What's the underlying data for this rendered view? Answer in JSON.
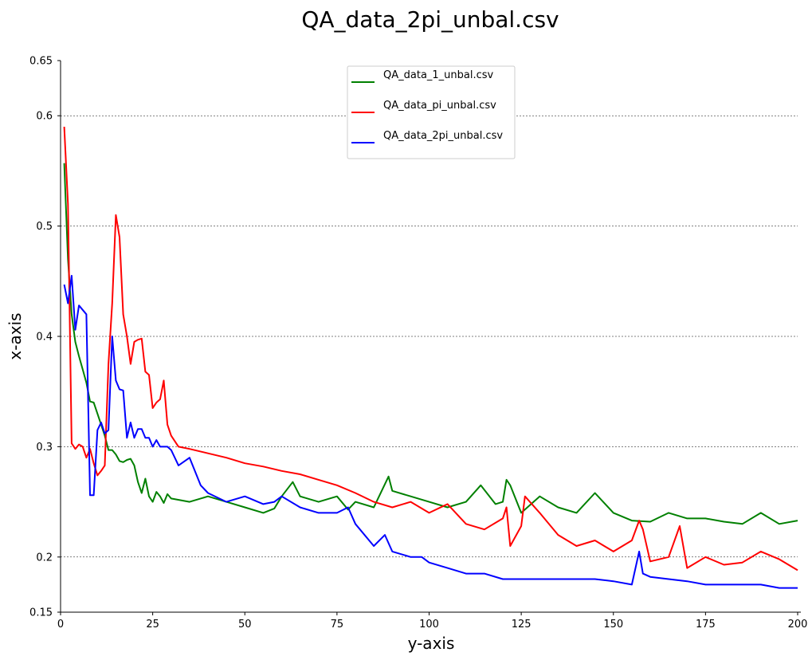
{
  "chart_data": {
    "type": "line",
    "title": "QA_data_2pi_unbal.csv",
    "xlabel": "y-axis",
    "ylabel": "x-axis",
    "xlim": [
      0,
      200
    ],
    "ylim": [
      0.15,
      0.65
    ],
    "xticks": [
      0,
      25,
      50,
      75,
      100,
      125,
      150,
      175,
      200
    ],
    "yticks": [
      0.15,
      0.2,
      0.3,
      0.4,
      0.5,
      0.6,
      0.65
    ],
    "ytick_labels": [
      "0.15",
      "0.2",
      "0.3",
      "0.4",
      "0.5",
      "0.6",
      "0.65"
    ],
    "grid": {
      "y_lines": [
        0.2,
        0.3,
        0.4,
        0.5,
        0.6
      ],
      "style": "dashed"
    },
    "legend": {
      "placement": "top-center"
    },
    "series": [
      {
        "name": "QA_data_1_unbal.csv",
        "color": "#008000",
        "x": [
          1,
          2,
          3,
          4,
          5,
          6,
          7,
          8,
          9,
          10,
          11,
          12,
          13,
          14,
          15,
          16,
          17,
          18,
          19,
          20,
          21,
          22,
          23,
          24,
          25,
          26,
          27,
          28,
          29,
          30,
          35,
          40,
          45,
          50,
          55,
          58,
          60,
          63,
          65,
          70,
          75,
          78,
          80,
          85,
          89,
          90,
          95,
          100,
          105,
          110,
          114,
          118,
          120,
          121,
          122,
          125,
          130,
          135,
          140,
          145,
          150,
          155,
          160,
          165,
          170,
          175,
          180,
          185,
          190,
          195,
          200
        ],
        "y": [
          0.557,
          0.47,
          0.42,
          0.395,
          0.382,
          0.37,
          0.358,
          0.341,
          0.34,
          0.33,
          0.32,
          0.31,
          0.297,
          0.297,
          0.293,
          0.287,
          0.286,
          0.288,
          0.289,
          0.283,
          0.268,
          0.258,
          0.271,
          0.255,
          0.25,
          0.259,
          0.255,
          0.249,
          0.257,
          0.253,
          0.25,
          0.255,
          0.25,
          0.245,
          0.24,
          0.244,
          0.255,
          0.268,
          0.255,
          0.25,
          0.255,
          0.243,
          0.25,
          0.245,
          0.273,
          0.26,
          0.255,
          0.25,
          0.245,
          0.25,
          0.265,
          0.248,
          0.25,
          0.27,
          0.265,
          0.24,
          0.255,
          0.245,
          0.24,
          0.258,
          0.24,
          0.233,
          0.232,
          0.24,
          0.235,
          0.235,
          0.232,
          0.23,
          0.24,
          0.23,
          0.233
        ]
      },
      {
        "name": "QA_data_pi_unbal.csv",
        "color": "#ff0000",
        "x": [
          1,
          2,
          3,
          4,
          5,
          6,
          7,
          8,
          9,
          10,
          11,
          12,
          13,
          14,
          15,
          16,
          17,
          18,
          19,
          20,
          21,
          22,
          23,
          24,
          25,
          26,
          27,
          28,
          29,
          30,
          32,
          35,
          40,
          45,
          50,
          55,
          60,
          65,
          70,
          75,
          80,
          85,
          90,
          95,
          100,
          105,
          110,
          115,
          120,
          121,
          122,
          125,
          126,
          130,
          135,
          140,
          145,
          150,
          155,
          157,
          158,
          160,
          165,
          168,
          170,
          175,
          180,
          185,
          190,
          195,
          200
        ],
        "y": [
          0.59,
          0.52,
          0.303,
          0.298,
          0.302,
          0.3,
          0.29,
          0.298,
          0.285,
          0.274,
          0.278,
          0.283,
          0.375,
          0.43,
          0.51,
          0.49,
          0.42,
          0.4,
          0.375,
          0.395,
          0.397,
          0.398,
          0.368,
          0.365,
          0.335,
          0.34,
          0.343,
          0.36,
          0.32,
          0.31,
          0.3,
          0.298,
          0.294,
          0.29,
          0.285,
          0.282,
          0.278,
          0.275,
          0.27,
          0.265,
          0.258,
          0.25,
          0.245,
          0.25,
          0.24,
          0.248,
          0.23,
          0.225,
          0.235,
          0.245,
          0.21,
          0.228,
          0.255,
          0.24,
          0.22,
          0.21,
          0.215,
          0.205,
          0.215,
          0.233,
          0.225,
          0.196,
          0.2,
          0.228,
          0.19,
          0.2,
          0.193,
          0.195,
          0.205,
          0.198,
          0.188
        ]
      },
      {
        "name": "QA_data_2pi_unbal.csv",
        "color": "#0000ff",
        "x": [
          1,
          2,
          3,
          4,
          5,
          6,
          7,
          8,
          9,
          10,
          11,
          12,
          13,
          14,
          15,
          16,
          17,
          18,
          19,
          20,
          21,
          22,
          23,
          24,
          25,
          26,
          27,
          28,
          29,
          30,
          32,
          35,
          38,
          40,
          45,
          50,
          55,
          58,
          60,
          65,
          70,
          75,
          78,
          80,
          85,
          88,
          90,
          95,
          98,
          100,
          105,
          110,
          115,
          120,
          125,
          130,
          135,
          140,
          145,
          150,
          155,
          157,
          158,
          160,
          165,
          170,
          175,
          180,
          185,
          190,
          195,
          200
        ],
        "y": [
          0.447,
          0.43,
          0.455,
          0.406,
          0.428,
          0.424,
          0.42,
          0.256,
          0.256,
          0.315,
          0.322,
          0.312,
          0.315,
          0.4,
          0.36,
          0.352,
          0.351,
          0.308,
          0.322,
          0.308,
          0.316,
          0.316,
          0.308,
          0.308,
          0.3,
          0.306,
          0.3,
          0.3,
          0.3,
          0.297,
          0.283,
          0.29,
          0.265,
          0.258,
          0.25,
          0.255,
          0.248,
          0.25,
          0.255,
          0.245,
          0.24,
          0.24,
          0.245,
          0.23,
          0.21,
          0.22,
          0.205,
          0.2,
          0.2,
          0.195,
          0.19,
          0.185,
          0.185,
          0.18,
          0.18,
          0.18,
          0.18,
          0.18,
          0.18,
          0.178,
          0.175,
          0.205,
          0.185,
          0.182,
          0.18,
          0.178,
          0.175,
          0.175,
          0.175,
          0.175,
          0.172,
          0.172
        ]
      }
    ]
  }
}
